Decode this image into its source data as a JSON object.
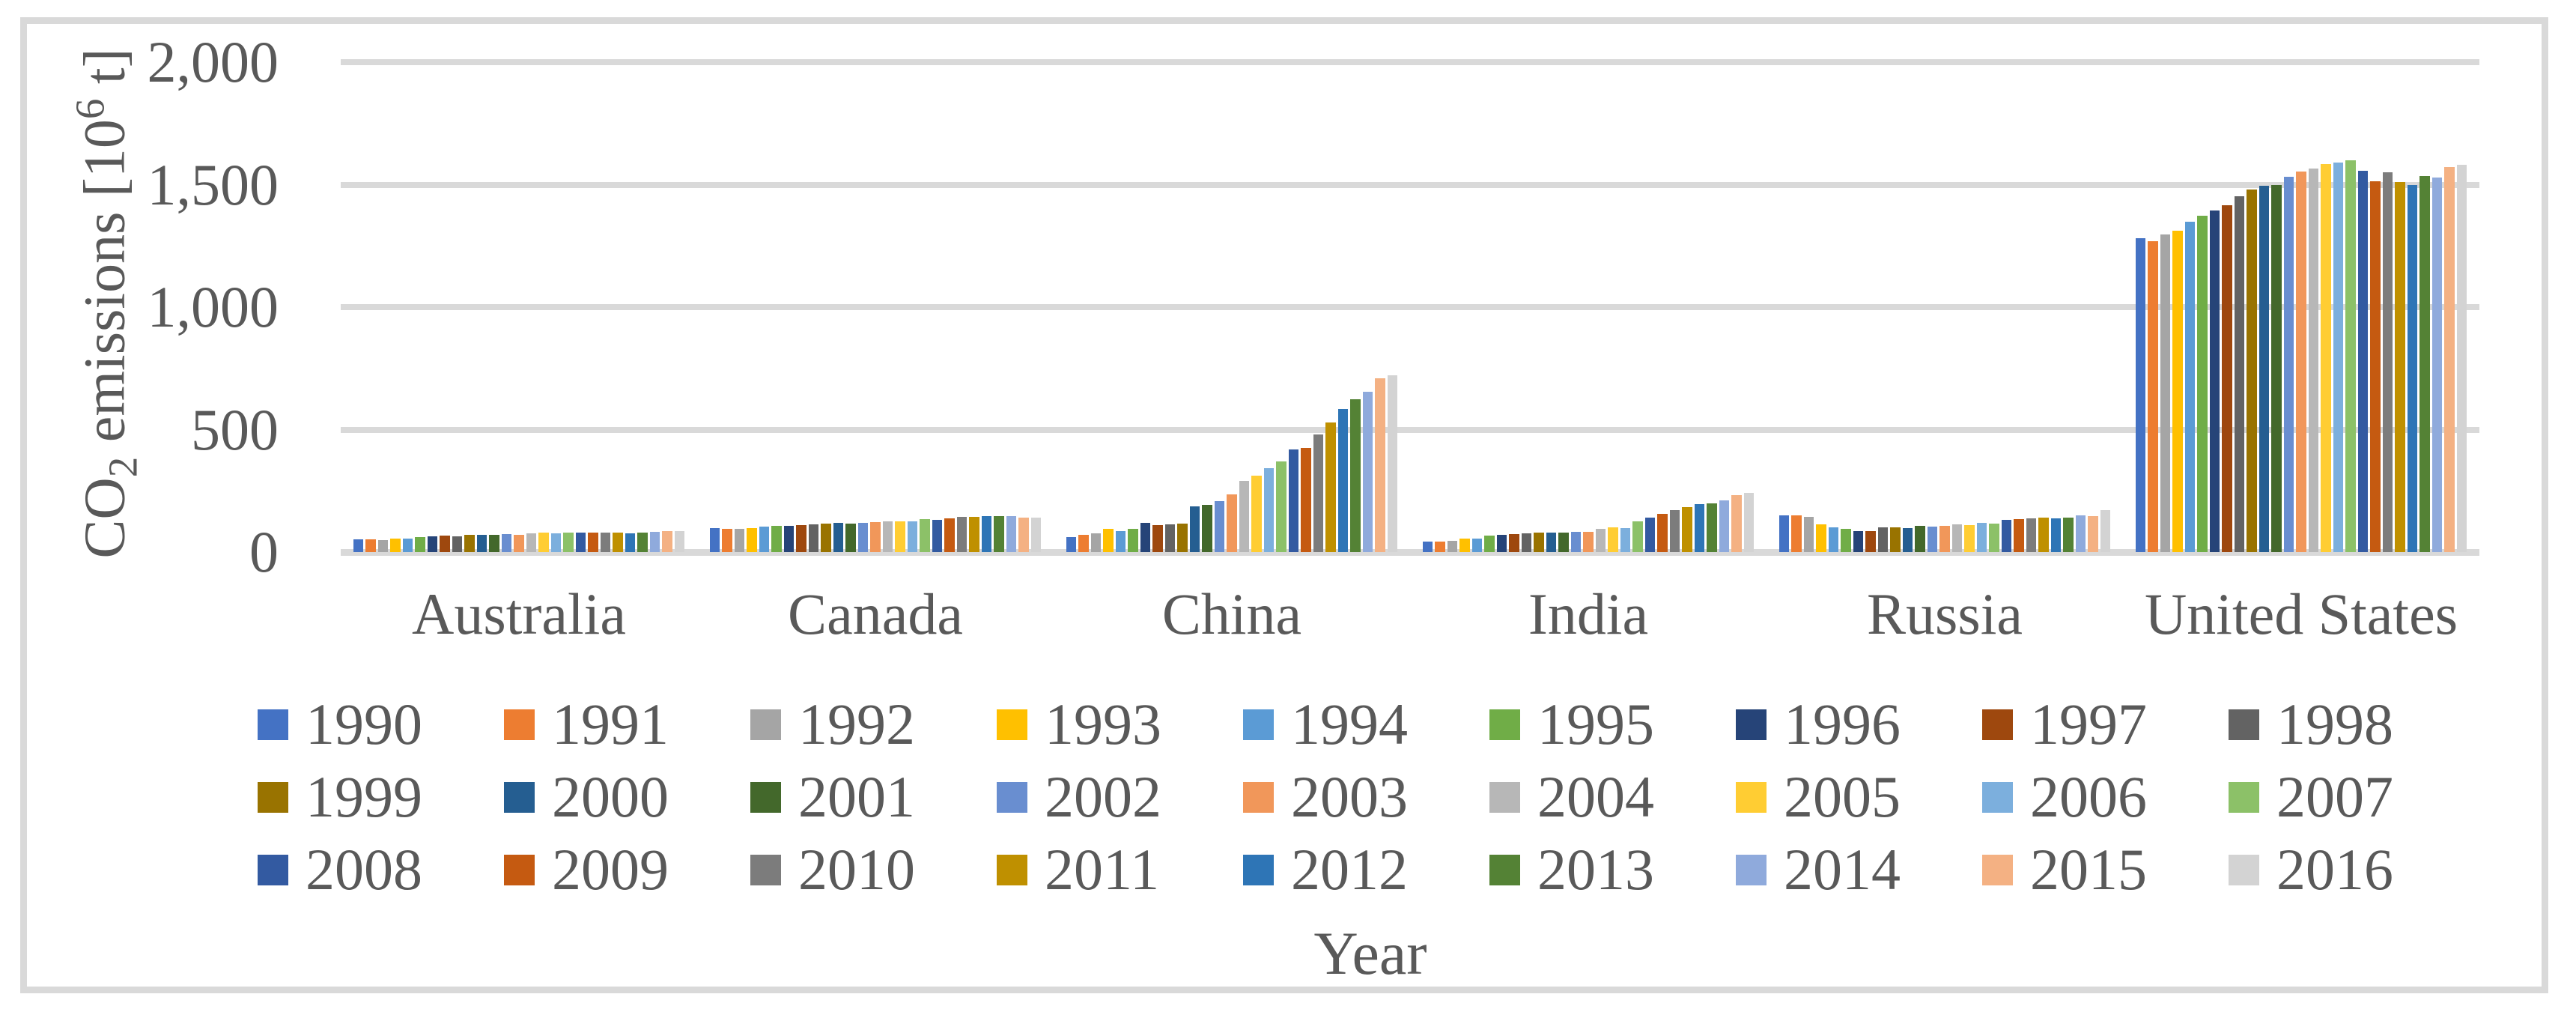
{
  "chart_data": {
    "type": "bar",
    "title": "",
    "xlabel": "Year",
    "ylabel": "CO2 emissions [10^6 t]",
    "ylabel_parts": {
      "prefix": "CO",
      "sub": "2",
      "mid": " emissions [10",
      "sup": "6",
      "suffix": " t]"
    },
    "ylim": [
      0,
      2000
    ],
    "yticks": [
      "2,000",
      "1,500",
      "1,000",
      "500",
      "0"
    ],
    "ytick_values": [
      2000,
      1500,
      1000,
      500,
      0
    ],
    "grid": "horizontal",
    "legend_position": "bottom",
    "legend_rows": 3,
    "categories": [
      "Australia",
      "Canada",
      "China",
      "India",
      "Russia",
      "United States"
    ],
    "series": [
      {
        "name": "1990",
        "color": "#4472C4",
        "values": [
          53,
          99,
          60,
          42,
          150,
          1282
        ]
      },
      {
        "name": "1991",
        "color": "#ED7D31",
        "values": [
          51,
          95,
          70,
          44,
          151,
          1270
        ]
      },
      {
        "name": "1992",
        "color": "#A5A5A5",
        "values": [
          48,
          95,
          78,
          47,
          144,
          1298
        ]
      },
      {
        "name": "1993",
        "color": "#FFC000",
        "values": [
          54,
          98,
          94,
          54,
          114,
          1313
        ]
      },
      {
        "name": "1994",
        "color": "#5B9BD5",
        "values": [
          55,
          104,
          87,
          55,
          102,
          1349
        ]
      },
      {
        "name": "1995",
        "color": "#70AD47",
        "values": [
          61,
          107,
          96,
          67,
          94,
          1374
        ]
      },
      {
        "name": "1996",
        "color": "#264478",
        "values": [
          64,
          106,
          119,
          70,
          85,
          1395
        ]
      },
      {
        "name": "1997",
        "color": "#9E480E",
        "values": [
          66,
          111,
          111,
          73,
          86,
          1415
        ]
      },
      {
        "name": "1998",
        "color": "#636363",
        "values": [
          64,
          113,
          113,
          75,
          101,
          1452
        ]
      },
      {
        "name": "1999",
        "color": "#997300",
        "values": [
          69,
          117,
          117,
          81,
          101,
          1480
        ]
      },
      {
        "name": "2000",
        "color": "#255E91",
        "values": [
          71,
          118,
          187,
          81,
          97,
          1494
        ]
      },
      {
        "name": "2001",
        "color": "#43682B",
        "values": [
          69,
          116,
          192,
          81,
          106,
          1500
        ]
      },
      {
        "name": "2002",
        "color": "#698ED0",
        "values": [
          73,
          118,
          207,
          84,
          103,
          1531
        ]
      },
      {
        "name": "2003",
        "color": "#F1975A",
        "values": [
          71,
          123,
          235,
          84,
          108,
          1553
        ]
      },
      {
        "name": "2004",
        "color": "#B7B7B7",
        "values": [
          76,
          125,
          290,
          95,
          113,
          1567
        ]
      },
      {
        "name": "2005",
        "color": "#FFCD33",
        "values": [
          79,
          126,
          313,
          100,
          110,
          1583
        ]
      },
      {
        "name": "2006",
        "color": "#7CAFDD",
        "values": [
          78,
          124,
          344,
          99,
          120,
          1589
        ]
      },
      {
        "name": "2007",
        "color": "#8CC168",
        "values": [
          81,
          134,
          371,
          124,
          117,
          1599
        ]
      },
      {
        "name": "2008",
        "color": "#335AA1",
        "values": [
          79,
          132,
          420,
          142,
          132,
          1557
        ]
      },
      {
        "name": "2009",
        "color": "#C55A11",
        "values": [
          81,
          137,
          424,
          157,
          134,
          1515
        ]
      },
      {
        "name": "2010",
        "color": "#7C7C7C",
        "values": [
          79,
          144,
          480,
          170,
          137,
          1550
        ]
      },
      {
        "name": "2011",
        "color": "#BF9000",
        "values": [
          80,
          144,
          530,
          184,
          141,
          1512
        ]
      },
      {
        "name": "2012",
        "color": "#2E75B6",
        "values": [
          78,
          146,
          583,
          196,
          137,
          1498
        ]
      },
      {
        "name": "2013",
        "color": "#548235",
        "values": [
          79,
          148,
          625,
          200,
          142,
          1535
        ]
      },
      {
        "name": "2014",
        "color": "#8FAADC",
        "values": [
          82,
          146,
          653,
          210,
          151,
          1529
        ]
      },
      {
        "name": "2015",
        "color": "#F4B183",
        "values": [
          86,
          142,
          711,
          231,
          148,
          1572
        ]
      },
      {
        "name": "2016",
        "color": "#D3D3D3",
        "values": [
          85,
          141,
          723,
          243,
          171,
          1580
        ]
      }
    ]
  },
  "colors": {
    "text": "#595959",
    "gridline": "#D9D9D9",
    "frame_border": "#D9D9D9",
    "background": "#FFFFFF"
  }
}
